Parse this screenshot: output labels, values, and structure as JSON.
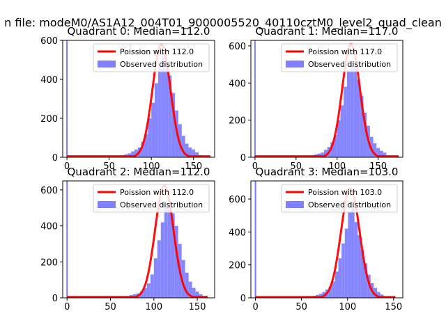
{
  "figure_title": "n file: modeM0/AS1A12_004T01_9000005520_40110cztM0_level2_quad_clean",
  "colors": {
    "poisson_line": "#ff0000",
    "observed_bars": "#8080ff",
    "zero_spike": "#6b6bff"
  },
  "chart_data": [
    {
      "type": "bar",
      "title": "Quadrant 0: Median=112.0",
      "xlim": [
        -5,
        175
      ],
      "ylim": [
        0,
        600
      ],
      "xticks": [
        0,
        50,
        100,
        150
      ],
      "yticks": [
        0,
        200,
        400,
        600
      ],
      "legend": [
        "Poission with 112.0",
        "Observed distribution"
      ],
      "legend_position": "top-right",
      "zero_spike": 600,
      "bin_width": 4,
      "observed": {
        "x": [
          60,
          64,
          68,
          72,
          76,
          80,
          84,
          88,
          92,
          96,
          100,
          104,
          108,
          112,
          116,
          120,
          124,
          128,
          132,
          136,
          140,
          144,
          148,
          152,
          156
        ],
        "y": [
          5,
          10,
          15,
          20,
          30,
          40,
          50,
          80,
          120,
          200,
          280,
          380,
          470,
          520,
          480,
          420,
          330,
          240,
          170,
          110,
          70,
          50,
          40,
          25,
          10
        ]
      },
      "poisson": {
        "mean": 112.0,
        "peak": 580,
        "sigma": 10.6,
        "x_start": 0,
        "x_end": 170,
        "baseline": 5
      }
    },
    {
      "type": "bar",
      "title": "Quadrant 1: Median=117.0",
      "xlim": [
        -5,
        180
      ],
      "ylim": [
        0,
        630
      ],
      "xticks": [
        0,
        50,
        100,
        150
      ],
      "yticks": [
        0,
        200,
        400,
        600
      ],
      "legend": [
        "Poission with 117.0",
        "Observed distribution"
      ],
      "legend_position": "top-right",
      "zero_spike": 630,
      "bin_width": 4,
      "observed": {
        "x": [
          64,
          68,
          72,
          76,
          80,
          84,
          88,
          92,
          96,
          100,
          104,
          108,
          112,
          116,
          120,
          124,
          128,
          132,
          136,
          140,
          144,
          148,
          152,
          156,
          160
        ],
        "y": [
          5,
          10,
          15,
          20,
          25,
          40,
          55,
          80,
          120,
          200,
          280,
          380,
          470,
          520,
          490,
          420,
          330,
          240,
          170,
          110,
          75,
          50,
          35,
          25,
          10
        ]
      },
      "poisson": {
        "mean": 117.0,
        "peak": 610,
        "sigma": 10.8,
        "x_start": 0,
        "x_end": 175,
        "baseline": 5
      }
    },
    {
      "type": "bar",
      "title": "Quadrant 2: Median=112.0",
      "xlim": [
        -5,
        170
      ],
      "ylim": [
        0,
        650
      ],
      "xticks": [
        0,
        50,
        100,
        150
      ],
      "yticks": [
        0,
        200,
        400,
        600
      ],
      "legend": [
        "Poission with 112.0",
        "Observed distribution"
      ],
      "legend_position": "top-right",
      "zero_spike": 650,
      "bin_width": 4,
      "observed": {
        "x": [
          64,
          68,
          72,
          76,
          80,
          84,
          88,
          92,
          96,
          100,
          104,
          108,
          112,
          116,
          120,
          124,
          128,
          132,
          136,
          140,
          144,
          148,
          152,
          156
        ],
        "y": [
          5,
          10,
          15,
          20,
          25,
          35,
          55,
          80,
          130,
          220,
          320,
          420,
          500,
          540,
          470,
          400,
          300,
          210,
          140,
          90,
          55,
          35,
          20,
          10
        ]
      },
      "poisson": {
        "mean": 112.0,
        "peak": 625,
        "sigma": 10.6,
        "x_start": 0,
        "x_end": 162,
        "baseline": 5
      }
    },
    {
      "type": "bar",
      "title": "Quadrant 3: Median=103.0",
      "xlim": [
        -5,
        160
      ],
      "ylim": [
        0,
        710
      ],
      "xticks": [
        0,
        50,
        100,
        150
      ],
      "yticks": [
        0,
        200,
        400,
        600
      ],
      "legend": [
        "Poission with 103.0",
        "Observed distribution"
      ],
      "legend_position": "top-right",
      "zero_spike": 710,
      "bin_width": 3.5,
      "observed": {
        "x": [
          55,
          58.5,
          62,
          65.5,
          69,
          72.5,
          76,
          79.5,
          83,
          86.5,
          90,
          93.5,
          97,
          100.5,
          104,
          107.5,
          111,
          114.5,
          118,
          121.5,
          125,
          128.5,
          132,
          135.5,
          139
        ],
        "y": [
          5,
          8,
          12,
          18,
          25,
          35,
          50,
          70,
          100,
          160,
          240,
          330,
          420,
          520,
          560,
          460,
          380,
          290,
          210,
          140,
          90,
          60,
          35,
          20,
          10
        ]
      },
      "poisson": {
        "mean": 103.0,
        "peak": 665,
        "sigma": 10.1,
        "x_start": 0,
        "x_end": 152,
        "baseline": 5
      }
    }
  ]
}
